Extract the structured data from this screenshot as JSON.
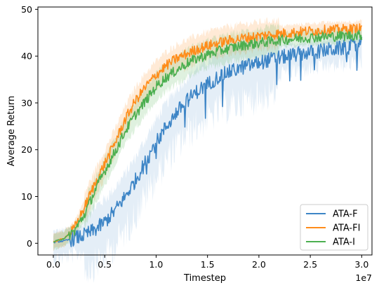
{
  "chart_data": {
    "type": "line",
    "xlabel": "Timestep",
    "ylabel": "Average Return",
    "x_offset_label": "1e7",
    "xlim": [
      -0.15,
      3.1
    ],
    "ylim": [
      -2.5,
      50.5
    ],
    "xticks": [
      0.0,
      0.5,
      1.0,
      1.5,
      2.0,
      2.5,
      3.0
    ],
    "xtick_labels": [
      "0.0",
      "0.5",
      "1.0",
      "1.5",
      "2.0",
      "2.5",
      "3.0"
    ],
    "yticks": [
      0,
      10,
      20,
      30,
      40,
      50
    ],
    "ytick_labels": [
      "0",
      "10",
      "20",
      "30",
      "40",
      "50"
    ],
    "grid": false,
    "legend_position": "bottom-right",
    "series": [
      {
        "name": "ATA-F",
        "color": "#3d85c6",
        "x": [
          0.0,
          0.1,
          0.2,
          0.3,
          0.4,
          0.5,
          0.6,
          0.7,
          0.8,
          0.9,
          1.0,
          1.1,
          1.2,
          1.3,
          1.4,
          1.5,
          1.6,
          1.7,
          1.8,
          1.9,
          2.0,
          2.1,
          2.2,
          2.3,
          2.4,
          2.5,
          2.6,
          2.7,
          2.8,
          2.9,
          3.0
        ],
        "y": [
          0.2,
          0.5,
          1.0,
          1.7,
          2.8,
          4.5,
          7.0,
          10.0,
          13.5,
          17.5,
          21.5,
          25.0,
          28.0,
          30.5,
          32.5,
          34.0,
          35.5,
          36.5,
          37.3,
          38.0,
          38.6,
          39.2,
          39.7,
          40.1,
          40.5,
          40.8,
          41.1,
          41.4,
          41.7,
          42.0,
          42.5
        ]
      },
      {
        "name": "ATA-FI",
        "color": "#ff8c1a",
        "x": [
          0.0,
          0.1,
          0.2,
          0.3,
          0.4,
          0.5,
          0.6,
          0.7,
          0.8,
          0.9,
          1.0,
          1.1,
          1.2,
          1.3,
          1.4,
          1.5,
          1.6,
          1.7,
          1.8,
          1.9,
          2.0,
          2.1,
          2.2,
          2.3,
          2.4,
          2.5,
          2.6,
          2.7,
          2.8,
          2.9,
          3.0
        ],
        "y": [
          0.3,
          1.0,
          3.0,
          7.5,
          12.5,
          17.0,
          21.5,
          26.5,
          30.5,
          33.5,
          36.0,
          38.0,
          39.5,
          40.5,
          41.5,
          42.2,
          42.8,
          43.3,
          43.7,
          44.0,
          44.3,
          44.6,
          44.8,
          45.0,
          45.2,
          45.4,
          45.5,
          45.6,
          45.7,
          45.8,
          45.9
        ]
      },
      {
        "name": "ATA-I",
        "color": "#4caf50",
        "x": [
          0.0,
          0.1,
          0.2,
          0.3,
          0.4,
          0.5,
          0.6,
          0.7,
          0.8,
          0.9,
          1.0,
          1.1,
          1.2,
          1.3,
          1.4,
          1.5,
          1.6,
          1.7,
          1.8,
          1.9,
          2.0,
          2.1,
          2.2,
          2.3,
          2.4,
          2.5,
          2.6,
          2.7,
          2.8,
          2.9,
          3.0
        ],
        "y": [
          0.3,
          1.0,
          2.5,
          6.0,
          11.0,
          15.5,
          19.5,
          24.0,
          27.5,
          30.5,
          33.5,
          35.5,
          37.0,
          38.5,
          39.5,
          40.3,
          41.0,
          41.6,
          42.1,
          42.5,
          42.8,
          43.1,
          43.4,
          43.6,
          43.8,
          44.0,
          44.1,
          44.2,
          44.3,
          44.4,
          44.5
        ]
      }
    ]
  }
}
